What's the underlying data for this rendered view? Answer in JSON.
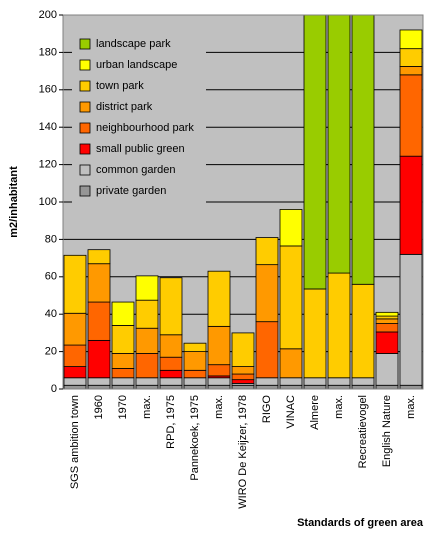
{
  "chart_data": {
    "type": "stacked_bar",
    "y_label": "m2/inhabitant",
    "x_label": "Standards of green area",
    "categories": [
      "SGS ambition town",
      "1960",
      "1970",
      "max.",
      "RPD, 1975",
      "Pannekoek, 1975",
      "max.",
      "WIRO De Keijzer, 1978",
      "RIGO",
      "VINAC",
      "Almere",
      "max.",
      "Recreatievogel",
      "English Nature",
      "max."
    ],
    "series": [
      {
        "name": "private garden",
        "color": "#969696",
        "values": [
          2,
          2,
          2,
          2,
          2,
          2,
          2,
          2,
          2,
          2,
          2,
          2,
          2,
          2,
          2
        ]
      },
      {
        "name": "common garden",
        "color": "#c0c0c0",
        "values": [
          4,
          4,
          4,
          4,
          4,
          4,
          4,
          1,
          4,
          4,
          4,
          4,
          4,
          17,
          70
        ]
      },
      {
        "name": "small public green",
        "color": "#ff0000",
        "values": [
          6,
          20,
          0,
          0,
          4,
          0,
          1,
          2,
          0,
          0,
          0,
          0,
          0,
          11.5,
          52.5
        ]
      },
      {
        "name": "neighbourhood park",
        "color": "#ff6600",
        "values": [
          11.5,
          20.5,
          5,
          13,
          7,
          4,
          6,
          3,
          30,
          0,
          0,
          0,
          0,
          4.5,
          43.5
        ]
      },
      {
        "name": "district park",
        "color": "#ff9900",
        "values": [
          17,
          20.5,
          8,
          13.5,
          12,
          10,
          20.5,
          4,
          30.5,
          15.5,
          0,
          0,
          0,
          2.5,
          4.5
        ]
      },
      {
        "name": "town park",
        "color": "#ffcc00",
        "values": [
          31,
          7.5,
          15,
          15,
          30.5,
          4.5,
          29.5,
          18,
          14.5,
          55,
          47.5,
          56,
          50,
          1.5,
          9.5
        ]
      },
      {
        "name": "urban landscape",
        "color": "#ffff00",
        "values": [
          0,
          0,
          12.5,
          13,
          0,
          0,
          0,
          0,
          0,
          19.5,
          0,
          0,
          0,
          2,
          10
        ]
      },
      {
        "name": "landscape park",
        "color": "#99cc00",
        "values": [
          0,
          0,
          0,
          0,
          0,
          0,
          0,
          0,
          0,
          0,
          146.5,
          138,
          144,
          0,
          0
        ]
      }
    ],
    "ylim": [
      0,
      200
    ],
    "yticks": [
      0,
      20,
      40,
      60,
      80,
      100,
      120,
      140,
      160,
      180,
      200
    ],
    "grid": true,
    "legend": "top-left"
  }
}
